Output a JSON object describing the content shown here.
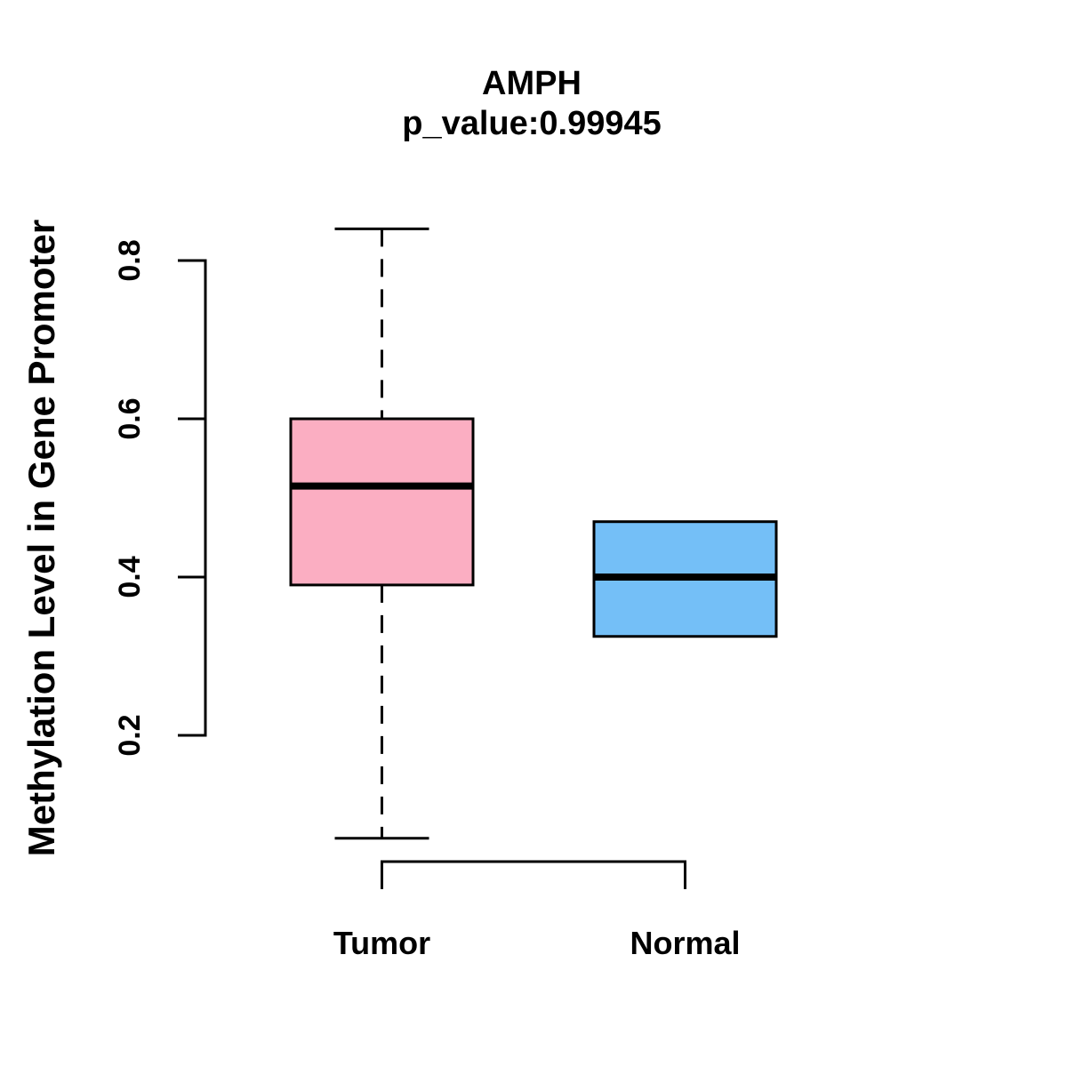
{
  "chart_data": {
    "type": "boxplot",
    "title": "AMPH",
    "subtitle": "p_value:0.99945",
    "ylabel": "Methylation Level in Gene Promoter",
    "xlabel": "",
    "categories": [
      "Tumor",
      "Normal"
    ],
    "yaxis": {
      "ticks": [
        0.2,
        0.4,
        0.6,
        0.8
      ],
      "range_shown": [
        0.2,
        0.8
      ]
    },
    "grid": false,
    "legend": "none",
    "series": [
      {
        "name": "Tumor",
        "box_fill": "#FBAEC2",
        "whisker_low": 0.07,
        "q1": 0.39,
        "median": 0.515,
        "q3": 0.6,
        "whisker_high": 0.84,
        "has_whiskers": true,
        "whisker_style": "dashed"
      },
      {
        "name": "Normal",
        "box_fill": "#74BFF7",
        "whisker_low": 0.325,
        "q1": 0.325,
        "median": 0.4,
        "q3": 0.47,
        "whisker_high": 0.47,
        "has_whiskers": false,
        "whisker_style": "none"
      }
    ],
    "colors": {
      "box_border": "#000000",
      "median_line": "#000000",
      "axis": "#000000",
      "text": "#000000",
      "background": "#FFFFFF"
    }
  }
}
